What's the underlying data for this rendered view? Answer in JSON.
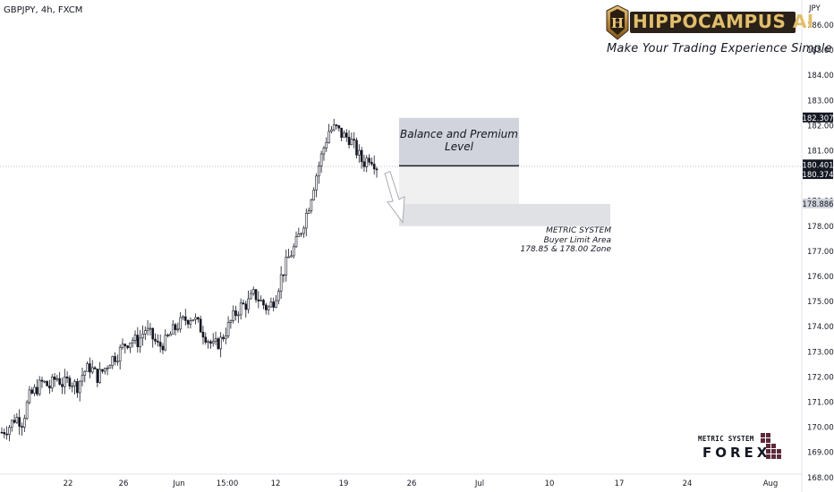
{
  "header": {
    "symbol": "GBPJPY, 4h, FXCM",
    "currency": "JPY"
  },
  "brand": {
    "name": "HIPPOCAMPUS AI",
    "tagline": "Make Your Trading Experience Simple"
  },
  "annotations": {
    "zone_title_1": "Balance and Premium",
    "zone_title_2": "Level",
    "note_1": "METRIC SYSTEM",
    "note_2": "Buyer Limit Area",
    "note_3": "178.85 & 178.00 Zone"
  },
  "logo": {
    "line1": "METRIC SYSTEM",
    "line2": "FOREX"
  },
  "price_tags": [
    {
      "value": "182.307",
      "bg": "#131722",
      "fg": "#ffffff"
    },
    {
      "value": "180.401",
      "bg": "#131722",
      "fg": "#ffffff"
    },
    {
      "value": "180.374",
      "bg": "#131722",
      "fg": "#ffffff"
    },
    {
      "value": "178.886",
      "bg": "#d1d4dc",
      "fg": "#131722"
    }
  ],
  "colors": {
    "candle": "#131722",
    "premium_zone": "#d1d4dc",
    "premium_zone_light": "#f0f0f1",
    "buyer_zone": "#e0e1e5",
    "arrow": "#9598a1",
    "current_price_line": "#9598a1",
    "brand_gold": "#c8a35a"
  },
  "chart_data": {
    "type": "candlestick",
    "symbol": "GBPJPY",
    "timeframe": "4h",
    "y_axis": {
      "ticks": [
        "186.000",
        "185.000",
        "184.000",
        "183.000",
        "182.000",
        "181.000",
        "180.000",
        "179.000",
        "178.000",
        "177.000",
        "176.000",
        "175.000",
        "174.000",
        "173.000",
        "172.000",
        "171.000",
        "170.000",
        "169.000",
        "168.000"
      ],
      "ylim": [
        167.85,
        186.7
      ]
    },
    "x_axis": {
      "ticks": [
        "22",
        "26",
        "Jun",
        "15:00",
        "12",
        "19",
        "26",
        "Jul",
        "10",
        "17",
        "24",
        "Aug"
      ]
    },
    "last_price": 180.374,
    "close_path": [
      169.8,
      170.0,
      170.4,
      170.2,
      171.2,
      171.5,
      171.8,
      171.6,
      172.0,
      171.7,
      171.9,
      171.6,
      172.2,
      172.4,
      172.0,
      172.3,
      172.7,
      172.9,
      173.3,
      173.5,
      173.4,
      173.9,
      173.6,
      173.2,
      173.4,
      173.8,
      174.1,
      174.3,
      174.4,
      174.0,
      173.6,
      173.2,
      173.4,
      173.9,
      174.4,
      174.8,
      174.9,
      175.3,
      175.0,
      174.7,
      175.1,
      176.0,
      176.7,
      177.2,
      177.9,
      178.8,
      179.9,
      180.9,
      181.8,
      181.9,
      181.6,
      181.5,
      181.0,
      180.5,
      180.8,
      180.4
    ],
    "candles_start_date_label": "22",
    "zones": [
      {
        "name": "Balance and Premium Level",
        "from": 180.4,
        "to": 182.307
      },
      {
        "name": "Buyer Limit Area",
        "from": 178.0,
        "to": 178.886
      }
    ]
  }
}
